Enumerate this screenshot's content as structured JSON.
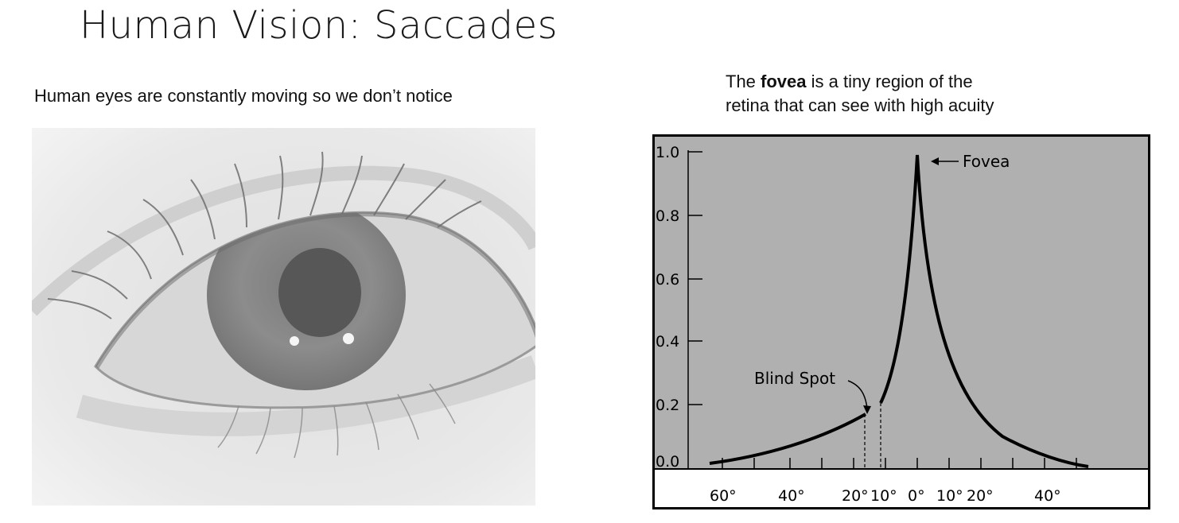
{
  "slide": {
    "title": "Human Vision: Saccades",
    "left_caption": "Human eyes are constantly moving so we don’t notice",
    "right_caption_pre": "The ",
    "right_caption_bold": "fovea",
    "right_caption_post": " is a tiny region of the",
    "right_caption_line2": "retina that can see with high acuity"
  },
  "image": {
    "subject": "close-up-grayscale-eye"
  },
  "figure": {
    "y_tick_labels": [
      "1.0",
      "0.8",
      "0.6",
      "0.4",
      "0.2",
      "0.0"
    ],
    "x_tick_labels": [
      "60°",
      "40°",
      "20°",
      "10°",
      "0°",
      "10°",
      "20°",
      "40°"
    ],
    "annotation_fovea": "Fovea",
    "annotation_blind_spot": "Blind Spot"
  },
  "colors": {
    "chart_background": "#b0b0b0",
    "curve": "#000000",
    "eye_skin": "#e8e8e8",
    "iris": "#8a8a8a",
    "pupil": "#5a5a5a"
  }
}
